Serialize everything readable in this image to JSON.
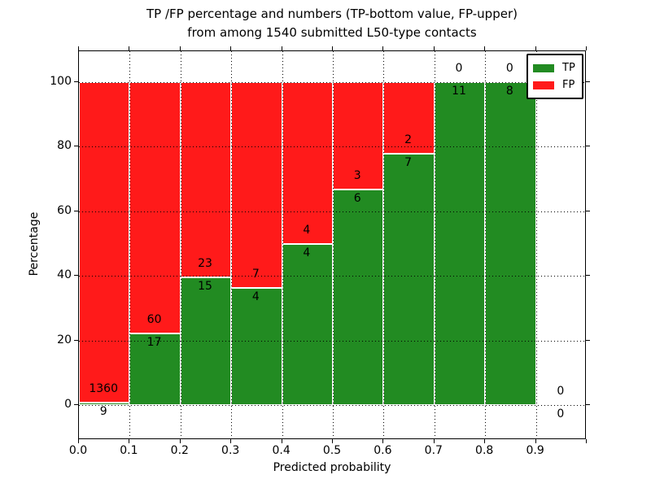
{
  "title": {
    "line1": "TP /FP percentage and numbers (TP-bottom value, FP-upper)",
    "line2": "from among 1540 submitted L50-type contacts"
  },
  "axes": {
    "xlabel": "Predicted probability",
    "ylabel": "Percentage",
    "x_tick_labels": [
      "0.0",
      "0.1",
      "0.2",
      "0.3",
      "0.4",
      "0.5",
      "0.6",
      "0.7",
      "0.8",
      "0.9"
    ],
    "y_tick_labels": [
      "0",
      "20",
      "40",
      "60",
      "80",
      "100"
    ],
    "y_tick_values": [
      0,
      20,
      40,
      60,
      80,
      100
    ]
  },
  "legend": {
    "items": [
      {
        "label": "TP",
        "color": "#228b22"
      },
      {
        "label": "FP",
        "color": "#ff1a1a"
      }
    ],
    "position": "upper right"
  },
  "colors": {
    "tp_green": "#228b22",
    "fp_red": "#ff1a1a",
    "grid": "#000000",
    "bar_edge": "#ffffff",
    "background": "#ffffff"
  },
  "total_submitted": 1540,
  "chart_data": {
    "type": "bar",
    "stacked": true,
    "normalized_to_percent": true,
    "title": "TP /FP percentage and numbers (TP-bottom value, FP-upper) from among 1540 submitted L50-type contacts",
    "xlabel": "Predicted probability",
    "ylabel": "Percentage",
    "bin_starts": [
      0.0,
      0.1,
      0.2,
      0.3,
      0.4,
      0.5,
      0.6,
      0.7,
      0.8,
      0.9
    ],
    "bin_width": 0.1,
    "series": [
      {
        "name": "TP",
        "color": "#228b22",
        "counts": [
          9,
          17,
          15,
          4,
          4,
          6,
          7,
          11,
          8,
          0
        ]
      },
      {
        "name": "FP",
        "color": "#ff1a1a",
        "counts": [
          1360,
          60,
          23,
          7,
          4,
          3,
          2,
          0,
          0,
          0
        ]
      }
    ],
    "tp_percent": [
      0.66,
      22.08,
      39.47,
      36.36,
      50.0,
      66.67,
      77.78,
      100.0,
      100.0,
      0.0
    ],
    "fp_percent": [
      99.34,
      77.92,
      60.53,
      63.64,
      50.0,
      33.33,
      22.22,
      0.0,
      0.0,
      0.0
    ],
    "xlim": [
      0.0,
      1.0
    ],
    "ylim": [
      -11,
      110
    ],
    "grid": true,
    "grid_style": "dotted",
    "legend_position": "upper right"
  }
}
